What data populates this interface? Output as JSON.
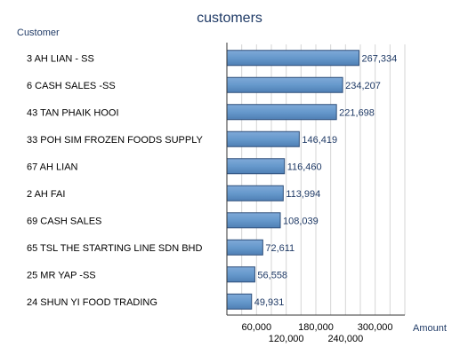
{
  "chart_data": {
    "type": "bar",
    "orientation": "horizontal",
    "title": "customers",
    "ylabel": "Customer",
    "xlabel": "Amount",
    "categories": [
      "3 AH LIAN - SS",
      "6 CASH SALES -SS",
      "43 TAN PHAIK HOOI",
      "33 POH SIM FROZEN FOODS SUPPLY",
      "67 AH LIAN",
      "2 AH FAI",
      "69 CASH SALES",
      "65 TSL THE STARTING LINE SDN BHD",
      "25 MR YAP -SS",
      "24 SHUN YI FOOD TRADING"
    ],
    "values": [
      267334,
      234207,
      221698,
      146419,
      116460,
      113994,
      108039,
      72611,
      56558,
      49931
    ],
    "value_labels": [
      "267,334",
      "234,207",
      "221,698",
      "146,419",
      "116,460",
      "113,994",
      "108,039",
      "72,611",
      "56,558",
      "49,931"
    ],
    "xlim": [
      0,
      360000
    ],
    "xticks": [
      60000,
      120000,
      180000,
      240000,
      300000
    ],
    "xtick_labels": [
      "60,000",
      "120,000",
      "180,000",
      "240,000",
      "300,000"
    ],
    "grid": true,
    "bar_color": "#6699cc"
  }
}
